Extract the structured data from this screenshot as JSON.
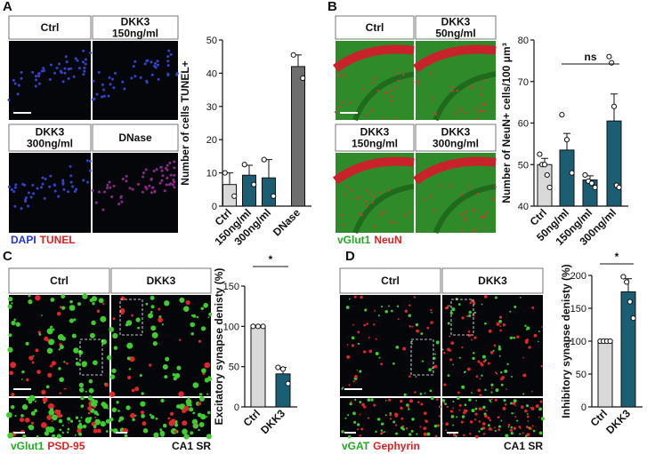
{
  "panels": [
    {
      "letter": "A",
      "image_labels": [
        [
          "Ctrl"
        ],
        [
          "DKK3",
          "150ng/ml"
        ],
        [
          "DKK3",
          "300ng/ml"
        ],
        [
          "DNase"
        ]
      ],
      "caption": [
        {
          "text": "DAPI",
          "color": "#2233dd"
        },
        {
          "text": "TUNEL",
          "color": "#dd2222"
        }
      ]
    },
    {
      "letter": "B",
      "image_labels": [
        [
          "Ctrl"
        ],
        [
          "DKK3",
          "50ng/ml"
        ],
        [
          "DKK3",
          "150ng/ml"
        ],
        [
          "DKK3",
          "300ng/ml"
        ]
      ],
      "caption": [
        {
          "text": "vGlut1",
          "color": "#22aa22"
        },
        {
          "text": "NeuN",
          "color": "#dd2222"
        }
      ]
    },
    {
      "letter": "C",
      "image_labels": [
        [
          "Ctrl"
        ],
        [
          "DKK3"
        ]
      ],
      "caption": [
        {
          "text": "vGlut1",
          "color": "#22aa22"
        },
        {
          "text": "PSD-95",
          "color": "#dd2222"
        }
      ],
      "region": "CA1 SR"
    },
    {
      "letter": "D",
      "image_labels": [
        [
          "Ctrl"
        ],
        [
          "DKK3"
        ]
      ],
      "caption": [
        {
          "text": "vGAT",
          "color": "#22aa22"
        },
        {
          "text": "Gephyrin",
          "color": "#dd2222"
        }
      ],
      "region": "CA1 SR"
    }
  ],
  "chart_data": [
    {
      "type": "bar",
      "ylabel": "Number of cells TUNEL+",
      "categories": [
        "Ctrl",
        "150ng/ml",
        "300ng/ml",
        "DNase"
      ],
      "values": [
        6.5,
        9.3,
        8.5,
        42
      ],
      "errors": [
        3.5,
        3,
        5.5,
        3.5
      ],
      "points": [
        [
          10,
          3
        ],
        [
          12.5,
          6.5
        ],
        [
          14,
          3
        ],
        [
          45.5,
          38.5
        ]
      ],
      "colors": [
        "#d9d9d9",
        "#1b5e73",
        "#1b5e73",
        "#6e6e6e"
      ],
      "ylim": [
        0,
        50
      ],
      "yticks": [
        0,
        10,
        20,
        30,
        40,
        50
      ]
    },
    {
      "type": "bar",
      "ylabel": "Number of NeuN+ cells/100 μm³",
      "categories": [
        "Ctrl",
        "50ng/ml",
        "150ng/ml",
        "300ng/ml"
      ],
      "values": [
        50,
        53.5,
        46.3,
        60.5
      ],
      "errors": [
        1.5,
        4,
        1,
        6.5
      ],
      "points": [
        [
          52.5,
          50,
          50,
          47.5,
          44.5
        ],
        [
          62,
          56,
          48
        ],
        [
          47.5,
          46,
          45.5,
          44.5
        ],
        [
          76,
          74.5,
          64,
          45,
          44.5
        ]
      ],
      "colors": [
        "#d9d9d9",
        "#1b5e73",
        "#1b5e73",
        "#1b5e73"
      ],
      "ylim": [
        40,
        80
      ],
      "yticks": [
        40,
        50,
        60,
        70,
        80
      ],
      "annotation": "ns"
    },
    {
      "type": "bar",
      "ylabel": "Excitatory synapse denisty (%)",
      "categories": [
        "Ctrl",
        "DKK3"
      ],
      "values": [
        100,
        41
      ],
      "errors": [
        0,
        8
      ],
      "points": [
        [
          100,
          100,
          100
        ],
        [
          49,
          47,
          29
        ]
      ],
      "colors": [
        "#d9d9d9",
        "#1b5e73"
      ],
      "ylim": [
        0,
        150
      ],
      "yticks": [
        0,
        50,
        100,
        150
      ],
      "annotation": "*"
    },
    {
      "type": "bar",
      "ylabel": "Inhibitory synapse denisty (%)",
      "categories": [
        "Ctrl",
        "DKK3"
      ],
      "values": [
        100,
        175
      ],
      "errors": [
        0,
        20
      ],
      "points": [
        [
          100,
          100,
          100,
          100
        ],
        [
          198,
          190,
          160,
          135
        ]
      ],
      "colors": [
        "#d9d9d9",
        "#1b5e73"
      ],
      "ylim": [
        0,
        200
      ],
      "yticks": [
        0,
        50,
        100,
        150,
        200
      ],
      "annotation": "*"
    }
  ]
}
